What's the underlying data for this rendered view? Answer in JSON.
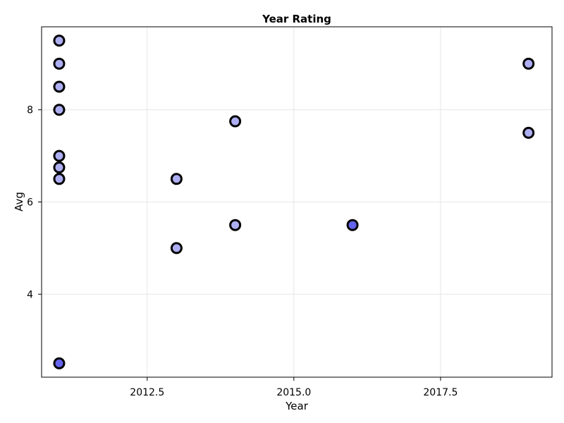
{
  "chart_data": {
    "type": "scatter",
    "title": "Year Rating",
    "xlabel": "Year",
    "ylabel": "Avg",
    "xlim": [
      2010.7,
      2019.4
    ],
    "ylim": [
      2.2,
      9.8
    ],
    "xticks": [
      2012.5,
      2015.0,
      2017.5
    ],
    "xtick_labels": [
      "2012.5",
      "2015.0",
      "2017.5"
    ],
    "yticks": [
      4,
      6,
      8
    ],
    "ytick_labels": [
      "4",
      "6",
      "8"
    ],
    "grid": true,
    "marker_fill": "#aeaef3",
    "marker_edge": "#000000",
    "overlap_fill": "#6464ee",
    "points": [
      {
        "x": 2011,
        "y": 9.5
      },
      {
        "x": 2011,
        "y": 9.0
      },
      {
        "x": 2011,
        "y": 8.5
      },
      {
        "x": 2011,
        "y": 8.0
      },
      {
        "x": 2011,
        "y": 7.0
      },
      {
        "x": 2011,
        "y": 6.75
      },
      {
        "x": 2011,
        "y": 6.5
      },
      {
        "x": 2011,
        "y": 2.5
      },
      {
        "x": 2011,
        "y": 2.5
      },
      {
        "x": 2013,
        "y": 6.5
      },
      {
        "x": 2013,
        "y": 5.0
      },
      {
        "x": 2014,
        "y": 7.75
      },
      {
        "x": 2014,
        "y": 5.5
      },
      {
        "x": 2016,
        "y": 5.5
      },
      {
        "x": 2016,
        "y": 5.5
      },
      {
        "x": 2019,
        "y": 9.0
      },
      {
        "x": 2019,
        "y": 7.5
      }
    ]
  }
}
